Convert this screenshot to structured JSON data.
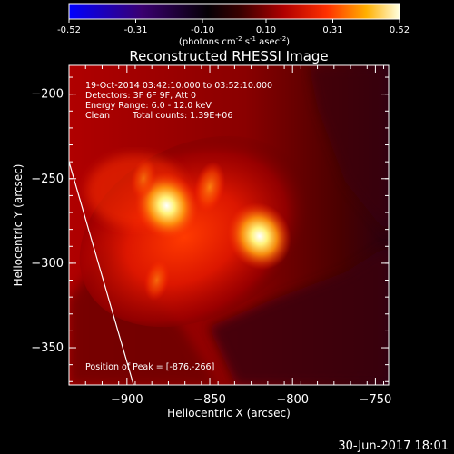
{
  "colorbar": {
    "tick_labels": [
      "-0.52",
      "-0.31",
      "-0.10",
      "0.10",
      "0.31",
      "0.52"
    ],
    "tick_values": [
      -0.52,
      -0.31,
      -0.1,
      0.1,
      0.31,
      0.52
    ],
    "range": [
      -0.52,
      0.52
    ],
    "units_prefix": "(photons cm",
    "units_exp1": "-2",
    "units_mid": " s",
    "units_exp2": "-1",
    "units_mid2": " asec",
    "units_exp3": "-2",
    "units_suffix": ")"
  },
  "chart_data": {
    "type": "heatmap",
    "title": "Reconstructed RHESSI Image",
    "xlabel": "Heliocentric X (arcsec)",
    "ylabel": "Heliocentric Y (arcsec)",
    "xlim": [
      -935,
      -742
    ],
    "ylim": [
      -372,
      -183
    ],
    "x_ticks": [
      -900,
      -850,
      -800,
      -750
    ],
    "x_tick_labels": [
      "−900",
      "−850",
      "−800",
      "−750"
    ],
    "y_ticks": [
      -350,
      -300,
      -250,
      -200
    ],
    "y_tick_labels": [
      "−350",
      "−300",
      "−250",
      "−200"
    ],
    "annotations": [
      "19-Oct-2014 03:42:10.000 to 03:52:10.000",
      "Detectors: 3F 6F 9F, Att 0",
      "Energy Range: 6.0 - 12.0 keV",
      "Clean",
      "Total counts: 1.39E+06"
    ],
    "peak_label": "Position of Peak = [-876,-266]",
    "peak": [
      -876,
      -266
    ],
    "sources": [
      {
        "x": -876,
        "y": -266,
        "amp": 1.0
      },
      {
        "x": -820,
        "y": -284,
        "amp": 0.95
      },
      {
        "x": -850,
        "y": -255,
        "amp": 0.45
      },
      {
        "x": -882,
        "y": -310,
        "amp": 0.25
      },
      {
        "x": -890,
        "y": -250,
        "amp": 0.25
      }
    ],
    "limb_line": [
      [
        -935,
        -240
      ],
      [
        -896,
        -372
      ]
    ],
    "color_scale": [
      "#0000ff",
      "#300060",
      "#000000",
      "#5a0000",
      "#b00000",
      "#ff4000",
      "#ffa000",
      "#ffffa0",
      "#ffffff"
    ]
  },
  "footer": {
    "timestamp": "30-Jun-2017 18:01"
  }
}
